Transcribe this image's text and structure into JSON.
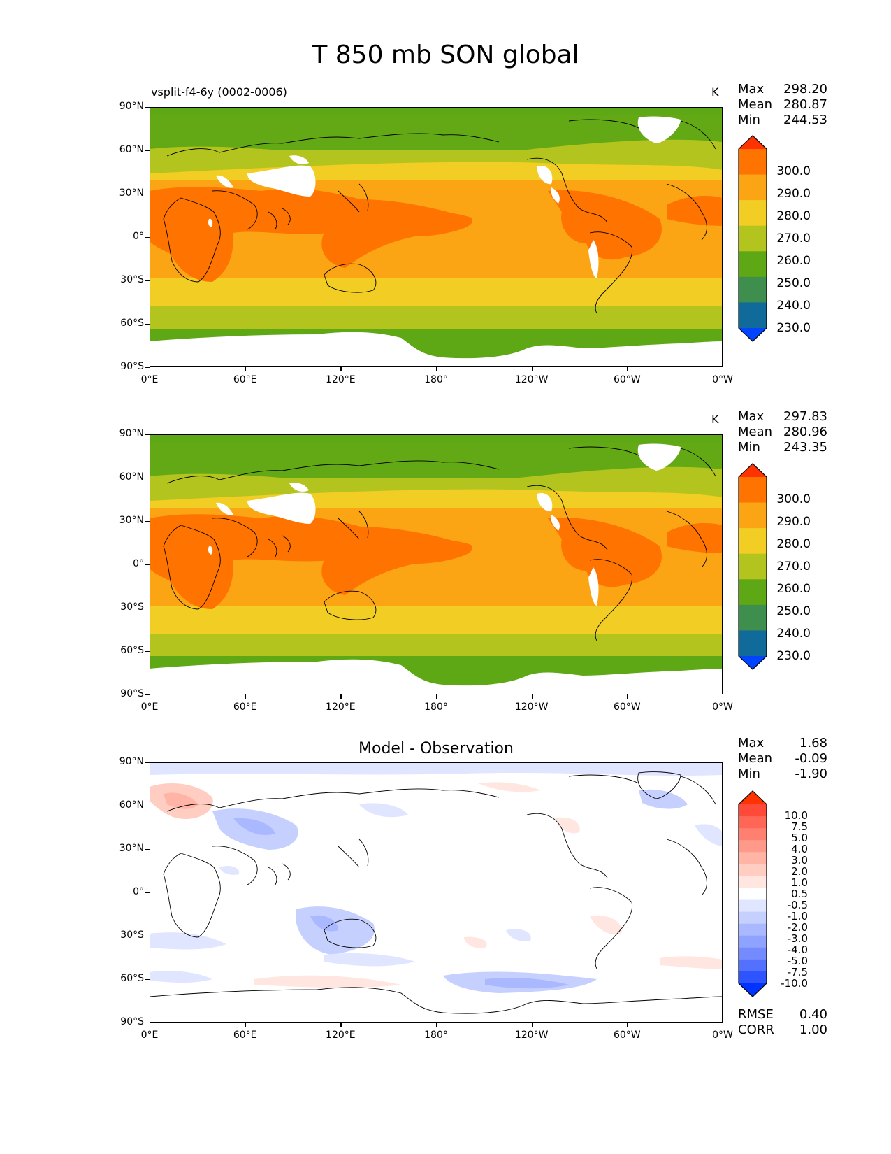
{
  "figure_title": "T 850 mb SON global",
  "panels": [
    {
      "id": "model",
      "left_title": "vsplit-f4-6y (0002-0006)",
      "units": "K",
      "center_title": "",
      "stats": [
        {
          "label": "Max",
          "value": "298.20"
        },
        {
          "label": "Mean",
          "value": "280.87"
        },
        {
          "label": "Min",
          "value": "244.53"
        }
      ],
      "colorbar": {
        "labels": [
          "300.0",
          "290.0",
          "280.0",
          "270.0",
          "260.0",
          "250.0",
          "240.0",
          "230.0"
        ],
        "colors": [
          "#ff3300",
          "#ff7300",
          "#fca514",
          "#f2cd24",
          "#b4c41e",
          "#5fa815",
          "#3e8e4e",
          "#106b9a",
          "#0044ff"
        ]
      }
    },
    {
      "id": "observation",
      "left_title": "",
      "units": "K",
      "center_title": "",
      "stats": [
        {
          "label": "Max",
          "value": "297.83"
        },
        {
          "label": "Mean",
          "value": "280.96"
        },
        {
          "label": "Min",
          "value": "243.35"
        }
      ],
      "colorbar": {
        "labels": [
          "300.0",
          "290.0",
          "280.0",
          "270.0",
          "260.0",
          "250.0",
          "240.0",
          "230.0"
        ],
        "colors": [
          "#ff3300",
          "#ff7300",
          "#fca514",
          "#f2cd24",
          "#b4c41e",
          "#5fa815",
          "#3e8e4e",
          "#106b9a",
          "#0044ff"
        ]
      }
    },
    {
      "id": "difference",
      "left_title": "",
      "units": "",
      "center_title": "Model - Observation",
      "stats": [
        {
          "label": "Max",
          "value": "1.68"
        },
        {
          "label": "Mean",
          "value": "-0.09"
        },
        {
          "label": "Min",
          "value": "-1.90"
        }
      ],
      "colorbar": {
        "labels": [
          "10.0",
          "7.5",
          "5.0",
          "4.0",
          "3.0",
          "2.0",
          "1.0",
          "0.5",
          "-0.5",
          "-1.0",
          "-2.0",
          "-3.0",
          "-4.0",
          "-5.0",
          "-7.5",
          "-10.0"
        ],
        "colors": [
          "#ff3300",
          "#ff4a3a",
          "#ff6655",
          "#ff8070",
          "#ff9a8a",
          "#ffb4a6",
          "#ffcdc2",
          "#ffe6e0",
          "#ffffff",
          "#e0e6ff",
          "#c6d0ff",
          "#aab9ff",
          "#8ea2ff",
          "#738bff",
          "#5370ff",
          "#2e54ff",
          "#0033ff"
        ]
      },
      "footer": [
        {
          "label": "RMSE",
          "value": "0.40"
        },
        {
          "label": "CORR",
          "value": "1.00"
        }
      ]
    }
  ],
  "axes": {
    "x_ticks": [
      "0°E",
      "60°E",
      "120°E",
      "180°",
      "120°W",
      "60°W",
      "0°W"
    ],
    "y_ticks": [
      "90°N",
      "60°N",
      "30°N",
      "0°",
      "30°S",
      "60°S",
      "90°S"
    ]
  },
  "map_colors": {
    "land_white": "#ffffff",
    "coast": "#000000"
  }
}
